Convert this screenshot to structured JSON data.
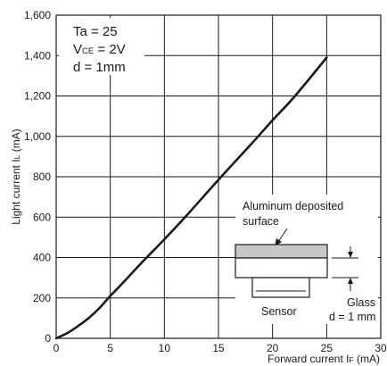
{
  "chart_data": {
    "type": "line",
    "xlabel": {
      "main": "Forward current I",
      "sub": "F",
      "unit": " (mA)"
    },
    "ylabel": {
      "main": "Light current I",
      "sub": "L",
      "unit": " (mA)"
    },
    "xlim": [
      0,
      30
    ],
    "ylim": [
      0,
      1600
    ],
    "x_ticks": [
      0,
      5,
      10,
      15,
      20,
      25,
      30
    ],
    "y_ticks": [
      0,
      200,
      400,
      600,
      800,
      1000,
      1200,
      1400,
      1600
    ],
    "y_tick_labels": [
      "0",
      "200",
      "400",
      "600",
      "800",
      "1,000",
      "1,200",
      "1,400",
      "1,600"
    ],
    "x_tick_labels": [
      "0",
      "5",
      "10",
      "15",
      "20",
      "25",
      "30"
    ],
    "grid": true,
    "series": [
      {
        "x": [
          0,
          1,
          2,
          3,
          4,
          5,
          6,
          8,
          10,
          12,
          15,
          18,
          20,
          22,
          25
        ],
        "y": [
          0,
          25,
          60,
          100,
          150,
          210,
          265,
          380,
          490,
          605,
          785,
          960,
          1080,
          1195,
          1390
        ]
      }
    ],
    "conditions": [
      {
        "main": "Ta = 25",
        "sub": "",
        "rest": ""
      },
      {
        "main": "V",
        "sub": "CE",
        "rest": " = 2V"
      },
      {
        "main": "d = 1mm",
        "sub": "",
        "rest": ""
      }
    ],
    "inset": {
      "surface_label_1": "Aluminum deposited",
      "surface_label_2": "surface",
      "sensor_label": "Sensor",
      "glass_label_1": "Glass",
      "glass_label_2": "d = 1 mm"
    },
    "colors": {
      "line": "#1a1a1a",
      "grid": "#1a1a1a",
      "glass_fill": "#c8c8c8",
      "background": "#ffffff"
    }
  }
}
